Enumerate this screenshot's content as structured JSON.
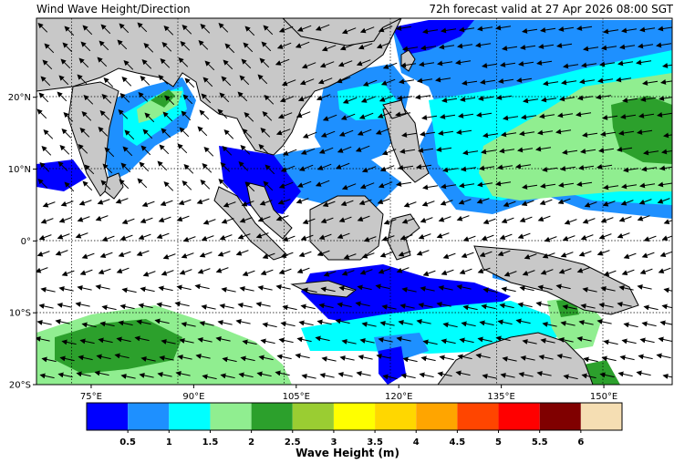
{
  "header": {
    "title_left": "Wind Wave Height/Direction",
    "title_right": "72h forecast valid at 27 Apr 2026 08:00 SGT"
  },
  "map": {
    "lon_range": [
      67,
      160
    ],
    "lat_range": [
      -20,
      31
    ],
    "lon_ticks": [
      {
        "value": 75,
        "label": "75°E"
      },
      {
        "value": 90,
        "label": "90°E"
      },
      {
        "value": 105,
        "label": "105°E"
      },
      {
        "value": 120,
        "label": "120°E"
      },
      {
        "value": 135,
        "label": "135°E"
      },
      {
        "value": 150,
        "label": "150°E"
      }
    ],
    "lat_ticks": [
      {
        "value": 20,
        "label": "20°N"
      },
      {
        "value": 10,
        "label": "10°N"
      },
      {
        "value": 0,
        "label": "0°"
      },
      {
        "value": -10,
        "label": "10°S"
      },
      {
        "value": -20,
        "label": "20°S"
      }
    ],
    "land_color": "#c8c8c8",
    "grid": "dotted"
  },
  "colorbar": {
    "title": "Wave Height (m)",
    "ticks": [
      "0.5",
      "1",
      "1.5",
      "2",
      "2.5",
      "3",
      "3.5",
      "4",
      "4.5",
      "5",
      "5.5",
      "6"
    ],
    "colors": [
      "#0000ff",
      "#1e90ff",
      "#00ffff",
      "#90ee90",
      "#2ca02c",
      "#9acd32",
      "#ffff00",
      "#ffd700",
      "#ffa500",
      "#ff4500",
      "#ff0000",
      "#800000",
      "#f5deb3"
    ]
  }
}
